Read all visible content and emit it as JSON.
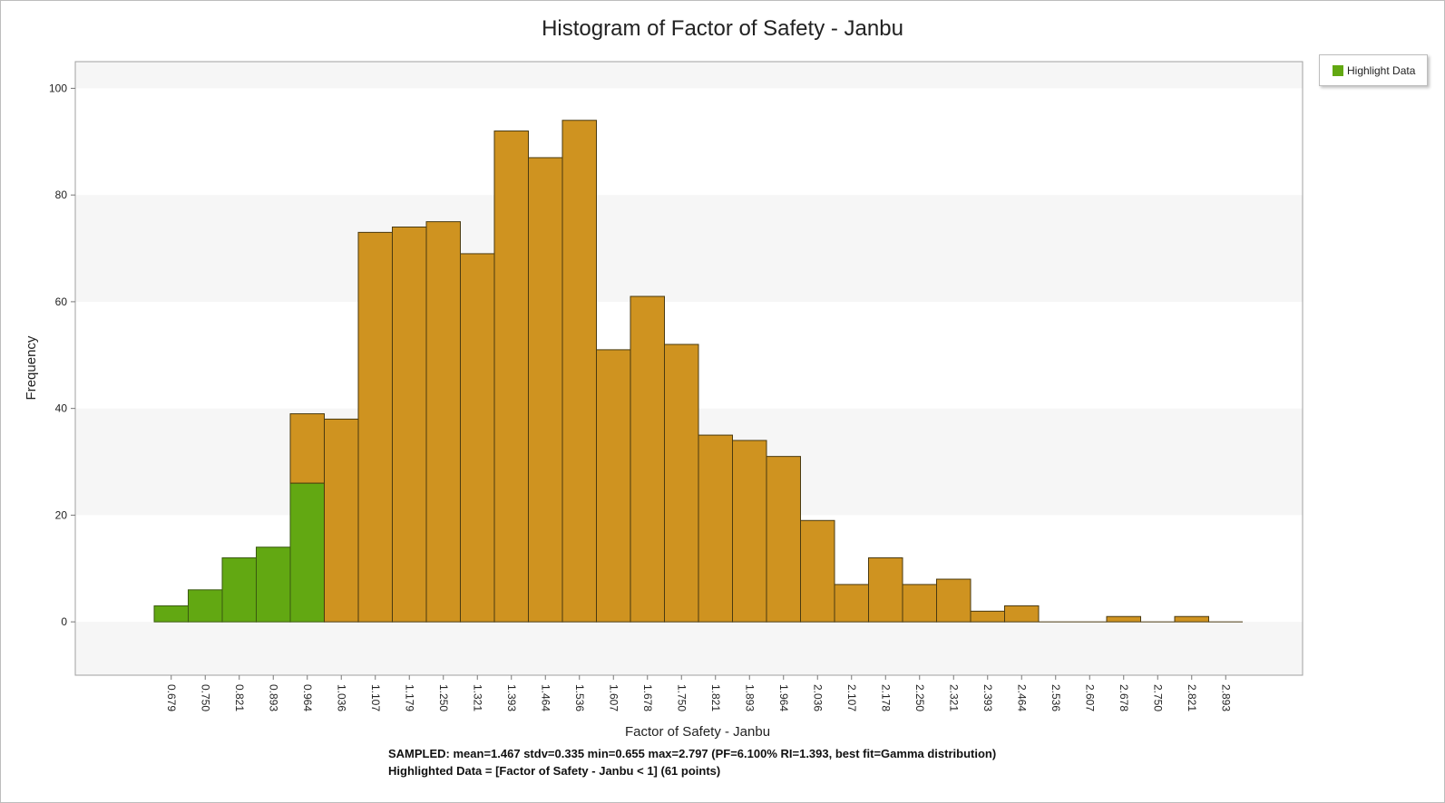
{
  "chart_data": {
    "type": "bar",
    "title": "Histogram of Factor of Safety - Janbu",
    "xlabel": "Factor of Safety - Janbu",
    "ylabel": "Frequency",
    "ylim": [
      -10,
      105
    ],
    "yticks": [
      0,
      20,
      40,
      60,
      80,
      100
    ],
    "grid": "alternating horizontal bands",
    "legend_position": "top-right",
    "categories": [
      "0.679",
      "0.750",
      "0.821",
      "0.893",
      "0.964",
      "1.036",
      "1.107",
      "1.179",
      "1.250",
      "1.321",
      "1.393",
      "1.464",
      "1.536",
      "1.607",
      "1.678",
      "1.750",
      "1.821",
      "1.893",
      "1.964",
      "2.036",
      "2.107",
      "2.178",
      "2.250",
      "2.321",
      "2.393",
      "2.464",
      "2.536",
      "2.607",
      "2.678",
      "2.750",
      "2.821",
      "2.893"
    ],
    "series": [
      {
        "name": "Highlight Data",
        "color": "#62a812",
        "values": [
          3,
          6,
          12,
          14,
          26,
          0,
          0,
          0,
          0,
          0,
          0,
          0,
          0,
          0,
          0,
          0,
          0,
          0,
          0,
          0,
          0,
          0,
          0,
          0,
          0,
          0,
          0,
          0,
          0,
          0,
          0,
          0
        ]
      },
      {
        "color": "#cf9320",
        "values": [
          0,
          0,
          0,
          0,
          13,
          38,
          73,
          74,
          75,
          69,
          92,
          87,
          94,
          51,
          61,
          52,
          35,
          34,
          31,
          19,
          7,
          12,
          7,
          8,
          2,
          3,
          0,
          0,
          1,
          0,
          1,
          0
        ]
      }
    ]
  },
  "legend": {
    "label": "Highlight Data",
    "color": "#62a812"
  },
  "stats": {
    "sampled": "SAMPLED: mean=1.467 stdv=0.335 min=0.655 max=2.797  (PF=6.100% RI=1.393, best fit=Gamma distribution)",
    "highlighted": "Highlighted Data = [Factor of Safety - Janbu < 1] (61 points)"
  }
}
